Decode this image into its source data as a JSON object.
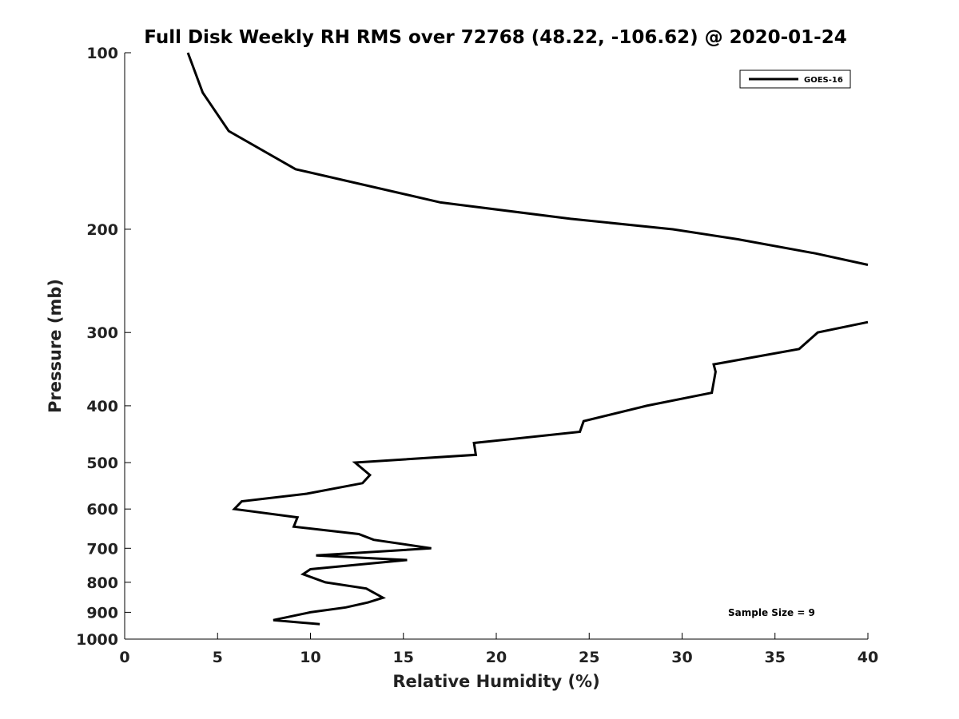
{
  "chart_data": {
    "type": "line",
    "title": "Full Disk Weekly RH RMS over 72768 (48.22, -106.62) @ 2020-01-24",
    "xlabel": "Relative Humidity (%)",
    "ylabel": "Pressure (mb)",
    "xlim": [
      0,
      40
    ],
    "ylim": [
      100,
      1000
    ],
    "y_scale": "log",
    "y_reversed": true,
    "x_ticks": [
      "0",
      "5",
      "10",
      "15",
      "20",
      "25",
      "30",
      "35",
      "40"
    ],
    "y_ticks": [
      "100",
      "200",
      "300",
      "400",
      "500",
      "600",
      "700",
      "800",
      "900",
      "1000"
    ],
    "legend": {
      "placement": "top-right",
      "entries": [
        "GOES-16"
      ]
    },
    "annotation": "Sample Size = 9",
    "grid": false,
    "series": [
      {
        "name": "GOES-16",
        "color": "#000000",
        "segments": [
          [
            [
              3.4,
              100
            ],
            [
              4.2,
              117
            ],
            [
              5.6,
              136
            ],
            [
              9.2,
              158
            ],
            [
              17.0,
              180
            ],
            [
              24.0,
              192
            ],
            [
              29.5,
              200
            ],
            [
              33.0,
              208
            ],
            [
              37.2,
              220
            ],
            [
              40.0,
              230
            ]
          ],
          [
            [
              40.0,
              288
            ],
            [
              37.3,
              300
            ],
            [
              36.3,
              320
            ],
            [
              31.7,
              340
            ],
            [
              31.8,
              350
            ],
            [
              31.6,
              380
            ],
            [
              28.1,
              400
            ],
            [
              24.7,
              425
            ],
            [
              24.5,
              443
            ],
            [
              18.8,
              463
            ],
            [
              18.9,
              485
            ],
            [
              12.4,
              500
            ],
            [
              13.2,
              525
            ],
            [
              12.8,
              542
            ],
            [
              9.8,
              565
            ],
            [
              6.3,
              582
            ],
            [
              5.9,
              600
            ],
            [
              9.3,
              620
            ],
            [
              9.1,
              643
            ],
            [
              12.6,
              662
            ],
            [
              13.4,
              677
            ],
            [
              16.5,
              700
            ],
            [
              10.3,
              720
            ],
            [
              15.2,
              733
            ],
            [
              10.0,
              760
            ],
            [
              9.6,
              775
            ],
            [
              10.8,
              800
            ],
            [
              13.0,
              820
            ],
            [
              13.9,
              850
            ],
            [
              13.1,
              866
            ],
            [
              11.9,
              883
            ],
            [
              10.0,
              900
            ],
            [
              8.0,
              928
            ],
            [
              10.5,
              943
            ]
          ]
        ]
      }
    ]
  }
}
